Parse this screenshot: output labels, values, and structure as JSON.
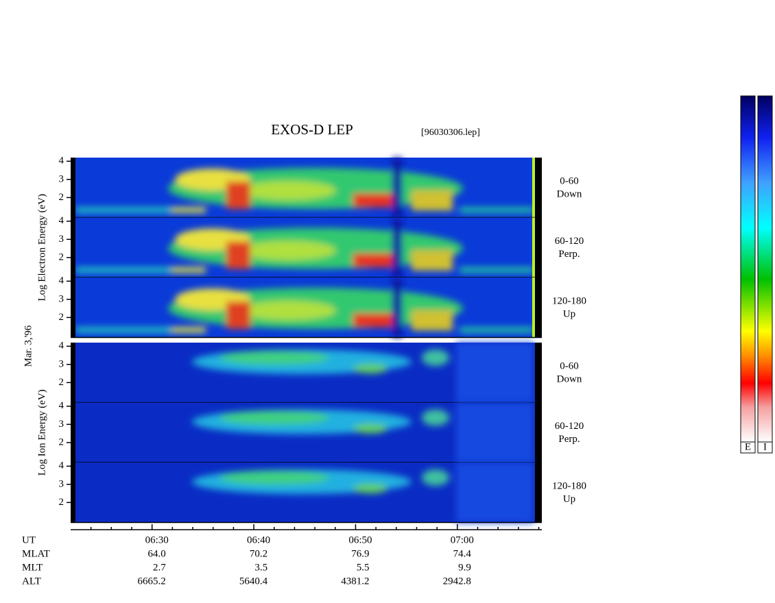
{
  "chart_data": {
    "type": "spectrogram",
    "title": "EXOS-D LEP",
    "file_label": "[96030306.lep]",
    "date_label": "Mar. 3,'96",
    "groups": [
      {
        "species": "electron",
        "ylabel": "Log Electron Energy (eV)",
        "panels": [
          {
            "angle": "0-60",
            "direction": "Down"
          },
          {
            "angle": "60-120",
            "direction": "Perp."
          },
          {
            "angle": "120-180",
            "direction": "Up"
          }
        ]
      },
      {
        "species": "ion",
        "ylabel": "Log Ion Energy (eV)",
        "panels": [
          {
            "angle": "0-60",
            "direction": "Down"
          },
          {
            "angle": "60-120",
            "direction": "Perp."
          },
          {
            "angle": "120-180",
            "direction": "Up"
          }
        ]
      }
    ],
    "ylim": [
      0.9,
      4.2
    ],
    "yticks": [
      2,
      3,
      4
    ],
    "xlim": [
      382,
      428.3
    ],
    "xticks": [
      {
        "value": 390,
        "label": "06:30"
      },
      {
        "value": 400,
        "label": "06:40"
      },
      {
        "value": 410,
        "label": "06:50"
      },
      {
        "value": 420,
        "label": "07:00"
      }
    ],
    "xminorticks": [
      384,
      386,
      388,
      392,
      394,
      396,
      398,
      402,
      404,
      406,
      408,
      412,
      414,
      416,
      418,
      422,
      424,
      426,
      428
    ],
    "ephemeris": [
      {
        "label": "UT",
        "values": null
      },
      {
        "label": "MLAT",
        "values": [
          "64.0",
          "70.2",
          "76.9",
          "74.4"
        ]
      },
      {
        "label": "MLT",
        "values": [
          "2.7",
          "3.5",
          "5.5",
          "9.9"
        ]
      },
      {
        "label": "ALT",
        "values": [
          "6665.2",
          "5640.4",
          "4381.2",
          "2942.8"
        ]
      }
    ],
    "colorbar_labels": [
      "E",
      "I"
    ]
  }
}
